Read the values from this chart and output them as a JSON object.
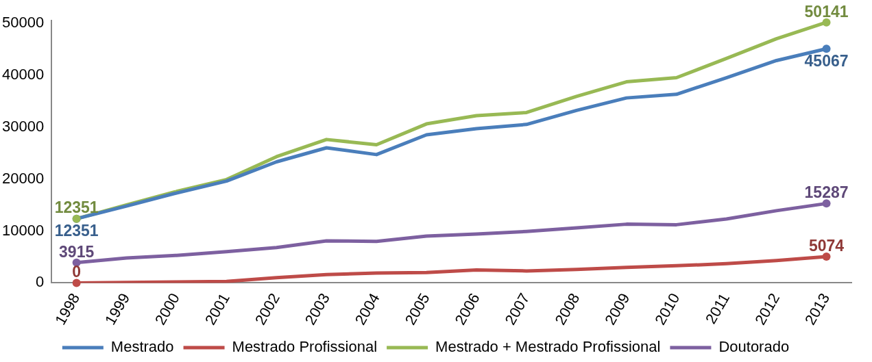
{
  "chart_data": {
    "type": "line",
    "categories": [
      "1998",
      "1999",
      "2000",
      "2001",
      "2002",
      "2003",
      "2004",
      "2005",
      "2006",
      "2007",
      "2008",
      "2009",
      "2010",
      "2011",
      "2012",
      "2013"
    ],
    "ylim": [
      0,
      50500
    ],
    "yticks": [
      0,
      10000,
      20000,
      30000,
      40000,
      50000
    ],
    "grid": false,
    "legend": "bottom",
    "line_style": "solid",
    "series": [
      {
        "name": "Mestrado",
        "color": "#4a7ebb",
        "values": [
          12351,
          14800,
          17300,
          19600,
          23300,
          26000,
          24700,
          28500,
          29700,
          30500,
          33200,
          35600,
          36300,
          39500,
          42800,
          45067
        ],
        "value_labels": [
          "12351",
          null,
          null,
          null,
          null,
          null,
          null,
          null,
          null,
          null,
          null,
          null,
          null,
          null,
          null,
          "45067"
        ]
      },
      {
        "name": "Mestrado Profissional",
        "color": "#be4b48",
        "values": [
          0,
          100,
          200,
          300,
          1000,
          1600,
          1900,
          2000,
          2500,
          2300,
          2600,
          3000,
          3300,
          3700,
          4300,
          5074
        ],
        "value_labels": [
          "0",
          null,
          null,
          null,
          null,
          null,
          null,
          null,
          null,
          null,
          null,
          null,
          null,
          null,
          null,
          "5074"
        ]
      },
      {
        "name": "Mestrado + Mestrado Profissional",
        "color": "#98b954",
        "values": [
          12351,
          15000,
          17600,
          19900,
          24300,
          27600,
          26600,
          30600,
          32200,
          32800,
          35900,
          38700,
          39500,
          43200,
          47000,
          50141
        ],
        "value_labels": [
          "12351",
          null,
          null,
          null,
          null,
          null,
          null,
          null,
          null,
          null,
          null,
          null,
          null,
          null,
          null,
          "50141"
        ]
      },
      {
        "name": "Doutorado",
        "color": "#7d60a0",
        "values": [
          3915,
          4800,
          5300,
          6000,
          6800,
          8100,
          8000,
          9000,
          9400,
          9900,
          10600,
          11300,
          11200,
          12300,
          13900,
          15287
        ],
        "value_labels": [
          "3915",
          null,
          null,
          null,
          null,
          null,
          null,
          null,
          null,
          null,
          null,
          null,
          null,
          null,
          null,
          "15287"
        ]
      }
    ]
  }
}
